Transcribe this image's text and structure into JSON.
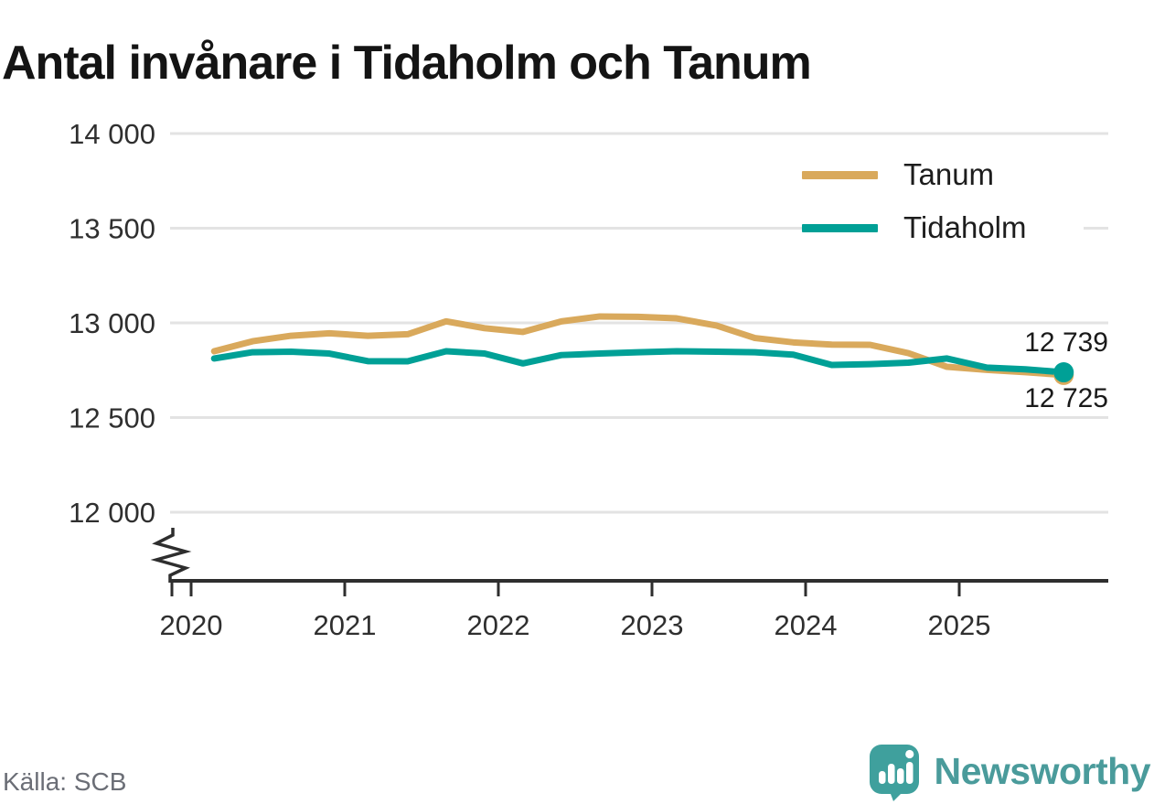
{
  "chart_data": {
    "type": "line",
    "title": "Antal invånare i Tidaholm och Tanum",
    "xlabel": "",
    "ylabel": "",
    "grid": true,
    "legend_position": "top-right",
    "y_axis": {
      "displayed_min": 12000,
      "displayed_max": 14000,
      "axis_break": true
    },
    "y_ticks": [
      {
        "value": 14000,
        "label": "14 000"
      },
      {
        "value": 13500,
        "label": "13 500"
      },
      {
        "value": 13000,
        "label": "13 000"
      },
      {
        "value": 12500,
        "label": "12 500"
      },
      {
        "value": 12000,
        "label": "12 000"
      }
    ],
    "x_ticks": [
      {
        "value": 2020,
        "label": "2020"
      },
      {
        "value": 2021,
        "label": "2021"
      },
      {
        "value": 2022,
        "label": "2022"
      },
      {
        "value": 2023,
        "label": "2023"
      },
      {
        "value": 2024,
        "label": "2024"
      },
      {
        "value": 2025,
        "label": "2025"
      }
    ],
    "x": [
      2020.15,
      2020.4,
      2020.65,
      2020.9,
      2021.15,
      2021.41,
      2021.66,
      2021.91,
      2022.16,
      2022.41,
      2022.66,
      2022.91,
      2023.16,
      2023.42,
      2023.67,
      2023.92,
      2024.17,
      2024.42,
      2024.67,
      2024.92,
      2025.18,
      2025.43,
      2025.68
    ],
    "series": [
      {
        "name": "Tanum",
        "color": "#d9a95c",
        "end_label": "12 725",
        "end_value": 12725,
        "values": [
          12850,
          12903,
          12932,
          12945,
          12932,
          12940,
          13008,
          12972,
          12952,
          13008,
          13034,
          13032,
          13024,
          12986,
          12920,
          12897,
          12885,
          12884,
          12840,
          12768,
          12752,
          12740,
          12725
        ]
      },
      {
        "name": "Tidaholm",
        "color": "#00a096",
        "end_label": "12 739",
        "end_value": 12739,
        "values": [
          12812,
          12845,
          12848,
          12838,
          12798,
          12797,
          12850,
          12838,
          12786,
          12830,
          12838,
          12845,
          12850,
          12848,
          12845,
          12832,
          12778,
          12782,
          12790,
          12812,
          12764,
          12755,
          12739
        ]
      }
    ]
  },
  "footer": {
    "source": "Källa: SCB",
    "brand": "Newsworthy"
  }
}
